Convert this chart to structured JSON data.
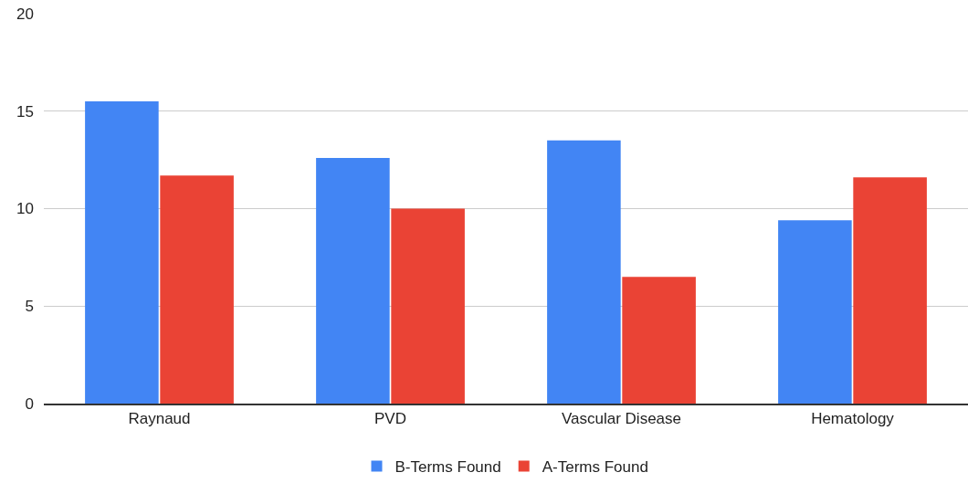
{
  "chart_data": {
    "type": "bar",
    "categories": [
      "Raynaud",
      "PVD",
      "Vascular Disease",
      "Hematology"
    ],
    "series": [
      {
        "name": "B-Terms Found",
        "color": "#4285f4",
        "values": [
          15.5,
          12.6,
          13.5,
          9.4
        ]
      },
      {
        "name": "A-Terms Found",
        "color": "#ea4335",
        "values": [
          11.7,
          10,
          6.5,
          11.6
        ]
      }
    ],
    "ylim": [
      0,
      20
    ],
    "yticks": [
      0,
      5,
      10,
      15,
      20
    ],
    "grid": "y",
    "legend": "bottom"
  }
}
